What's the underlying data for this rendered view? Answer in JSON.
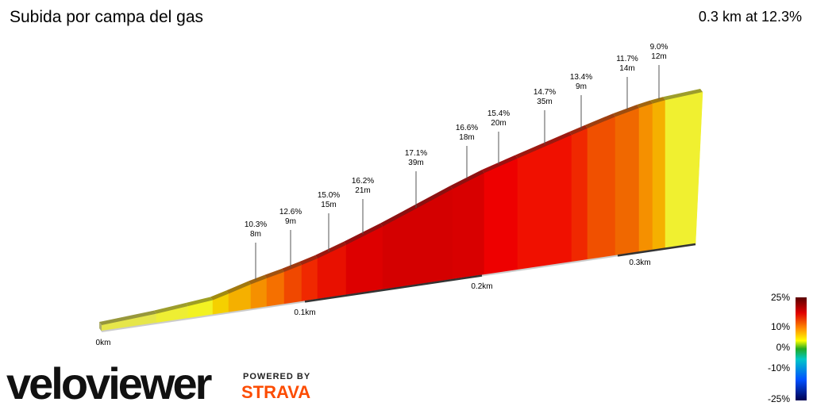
{
  "chart_data": {
    "type": "profile",
    "title": "Subida por  campa del gas",
    "subtitle": "0.3 km at 12.3%",
    "annotations": [
      {
        "grade": "10.3%",
        "length": "8m"
      },
      {
        "grade": "12.6%",
        "length": "9m"
      },
      {
        "grade": "15.0%",
        "length": "15m"
      },
      {
        "grade": "16.2%",
        "length": "21m"
      },
      {
        "grade": "17.1%",
        "length": "39m"
      },
      {
        "grade": "16.6%",
        "length": "18m"
      },
      {
        "grade": "15.4%",
        "length": "20m"
      },
      {
        "grade": "14.7%",
        "length": "35m"
      },
      {
        "grade": "13.4%",
        "length": "9m"
      },
      {
        "grade": "11.7%",
        "length": "14m"
      },
      {
        "grade": "9.0%",
        "length": "12m"
      }
    ],
    "xticks": [
      {
        "value": 0,
        "label": "0km"
      },
      {
        "value": 0.1,
        "label": "0.1km"
      },
      {
        "value": 0.2,
        "label": "0.2km"
      },
      {
        "value": 0.3,
        "label": "0.3km"
      }
    ],
    "colors": [
      "#e6e64a",
      "#eeee33",
      "#f2f222",
      "#f5d000",
      "#f5b000",
      "#f59000",
      "#f57000",
      "#f04800",
      "#f02800",
      "#e81000",
      "#dd0000",
      "#d40000",
      "#d80000",
      "#ee0000",
      "#f01000",
      "#f02800",
      "#f05000",
      "#f06800",
      "#f59000",
      "#f5b000",
      "#f0f030"
    ],
    "legend": {
      "ticks": [
        {
          "value": 25,
          "label": "25%"
        },
        {
          "value": 10,
          "label": "10%"
        },
        {
          "value": 0,
          "label": "0%"
        },
        {
          "value": -10,
          "label": "-10%"
        },
        {
          "value": -25,
          "label": "-25%"
        }
      ]
    }
  },
  "branding": {
    "logo": "veloviewer",
    "powered": "POWERED BY",
    "strava": "STRAVA"
  }
}
